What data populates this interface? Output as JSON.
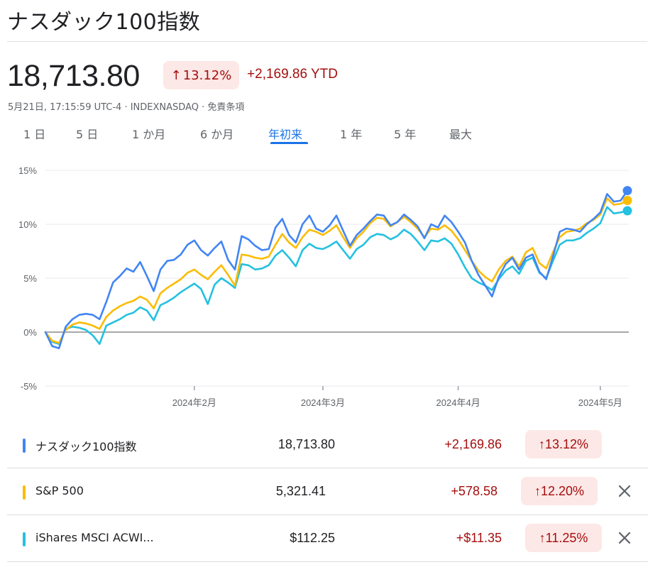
{
  "header": {
    "title": "ナスダック100指数",
    "price": "18,713.80",
    "pct_change": "13.12%",
    "up_arrow": "↑",
    "abs_change": "+2,169.86 YTD",
    "meta": "5月21日, 17:15:59 UTC-4 · INDEXNASDAQ · 免責条項"
  },
  "tabs": [
    {
      "label": "1 日"
    },
    {
      "label": "5 日"
    },
    {
      "label": "1 か月"
    },
    {
      "label": "6 か月"
    },
    {
      "label": "年初来"
    },
    {
      "label": "1 年"
    },
    {
      "label": "5 年"
    },
    {
      "label": "最大"
    }
  ],
  "colors": {
    "nasdaq": "#4285f4",
    "sp500": "#fbbc04",
    "acwi": "#24c1e0",
    "up": "#a50e0e",
    "chip_bg": "#fce8e6",
    "accent": "#1a73e8"
  },
  "chart_data": {
    "type": "line",
    "ylim": [
      -5,
      15
    ],
    "yticks": [
      "15%",
      "10%",
      "5%",
      "0%",
      "-5%"
    ],
    "ytick_values": [
      15,
      10,
      5,
      0,
      -5
    ],
    "xticks": [
      "2024年2月",
      "2024年3月",
      "2024年4月",
      "2024年5月"
    ],
    "xtick_days": [
      22,
      41,
      61,
      82
    ],
    "baseline": 0,
    "series": [
      {
        "name": "ナスダック100指数",
        "color": "#4285f4",
        "values": [
          0,
          -1.3,
          -1.5,
          0.5,
          1.2,
          1.6,
          1.7,
          1.6,
          1.2,
          2.8,
          4.6,
          5.2,
          5.9,
          5.6,
          6.5,
          5.2,
          3.8,
          5.8,
          6.6,
          6.7,
          7.2,
          8.1,
          8.5,
          7.6,
          7.1,
          7.8,
          8.4,
          6.7,
          5.8,
          8.9,
          8.6,
          8.0,
          7.6,
          7.7,
          9.7,
          10.5,
          9.0,
          8.3,
          10.0,
          10.8,
          9.6,
          9.3,
          9.9,
          10.8,
          9.4,
          8.0,
          9.0,
          9.6,
          10.3,
          10.9,
          10.8,
          9.9,
          10.2,
          10.9,
          10.4,
          9.8,
          8.7,
          10.0,
          9.7,
          10.8,
          10.2,
          9.3,
          8.3,
          6.6,
          5.3,
          4.3,
          3.3,
          5.1,
          6.3,
          6.9,
          5.8,
          6.9,
          7.2,
          5.6,
          4.9,
          7.0,
          9.3,
          9.6,
          9.5,
          9.3,
          10.0,
          10.5,
          11.1,
          12.8,
          12.1,
          12.2,
          13.12
        ]
      },
      {
        "name": "S&P 500",
        "color": "#fbbc04",
        "values": [
          0,
          -0.8,
          -1.0,
          0.2,
          0.7,
          0.9,
          0.8,
          0.6,
          0.3,
          1.4,
          2.0,
          2.4,
          2.7,
          2.9,
          3.3,
          3.0,
          2.2,
          3.6,
          4.1,
          4.5,
          4.9,
          5.5,
          5.8,
          5.3,
          4.9,
          5.6,
          6.2,
          5.3,
          4.3,
          7.2,
          7.1,
          6.9,
          6.8,
          7.0,
          8.1,
          9.1,
          8.3,
          7.8,
          8.8,
          9.5,
          9.3,
          9.0,
          9.4,
          9.9,
          8.8,
          7.8,
          8.7,
          9.3,
          10.1,
          10.6,
          10.5,
          9.8,
          10.2,
          10.7,
          10.2,
          9.6,
          8.8,
          9.6,
          9.5,
          9.9,
          9.4,
          8.6,
          7.6,
          6.6,
          5.7,
          5.1,
          4.7,
          5.8,
          6.6,
          7.0,
          6.1,
          7.4,
          7.8,
          6.4,
          5.9,
          7.4,
          8.8,
          9.3,
          9.4,
          9.6,
          10.1,
          10.4,
          10.9,
          12.4,
          11.8,
          11.9,
          12.2
        ]
      },
      {
        "name": "iShares MSCI ACWI...",
        "color": "#24c1e0",
        "values": [
          0,
          -0.9,
          -1.1,
          0.3,
          0.5,
          0.4,
          0.2,
          -0.3,
          -1.1,
          0.6,
          0.9,
          1.2,
          1.6,
          1.8,
          2.3,
          2.0,
          1.1,
          2.5,
          2.8,
          3.2,
          3.7,
          4.1,
          4.5,
          4.0,
          2.6,
          4.4,
          5.0,
          4.6,
          4.1,
          6.3,
          6.2,
          5.8,
          5.9,
          6.2,
          7.1,
          7.6,
          6.9,
          6.1,
          7.6,
          8.2,
          7.8,
          7.7,
          8.0,
          8.4,
          7.6,
          6.8,
          7.7,
          8.1,
          8.8,
          9.1,
          9.0,
          8.6,
          8.9,
          9.5,
          9.1,
          8.4,
          7.6,
          8.5,
          8.4,
          8.7,
          8.2,
          7.2,
          6.0,
          5.0,
          4.6,
          4.3,
          3.9,
          4.9,
          5.7,
          6.1,
          5.4,
          6.6,
          6.9,
          5.5,
          5.0,
          6.6,
          8.1,
          8.5,
          8.5,
          8.7,
          9.2,
          9.6,
          10.1,
          11.6,
          11.0,
          11.1,
          11.25
        ]
      }
    ]
  },
  "legend": [
    {
      "name": "ナスダック100指数",
      "price": "18,713.80",
      "change": "+2,169.86",
      "pct": "13.12%",
      "color": "#4285f4",
      "removable": false
    },
    {
      "name": "S&P 500",
      "price": "5,321.41",
      "change": "+578.58",
      "pct": "12.20%",
      "color": "#fbbc04",
      "removable": true
    },
    {
      "name": "iShares MSCI ACWI...",
      "price": "$112.25",
      "change": "+$11.35",
      "pct": "11.25%",
      "color": "#24c1e0",
      "removable": true
    }
  ]
}
